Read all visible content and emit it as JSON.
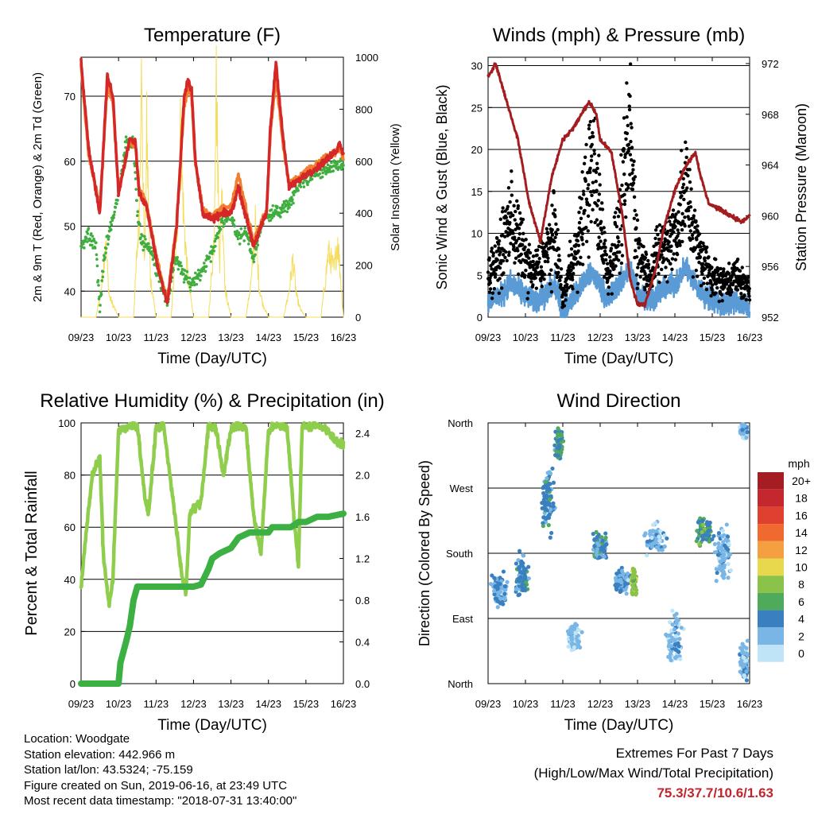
{
  "colors": {
    "temp2m": "#d62728",
    "temp9m": "#f08030",
    "dewpoint": "#3fae3f",
    "insolation": "#f5dc5a",
    "wind": "#000000",
    "gust_sonic": "#5b9bd5",
    "pressure": "#a31c1f",
    "rh": "#8fce4c",
    "precip": "#3cb043",
    "extremes_text": "#c0262d"
  },
  "days": [
    "09/23",
    "10/23",
    "11/23",
    "12/23",
    "13/23",
    "14/23",
    "15/23",
    "16/23"
  ],
  "info": {
    "location": "Location: Woodgate",
    "elevation": "Station elevation: 442.966 m",
    "latlon": "Station lat/lon: 43.5324; -75.159",
    "created": "Figure created on Sun, 2019-06-16, at 23:49 UTC",
    "recent": "Most recent data timestamp: \"2018-07-31 13:40:00\""
  },
  "extremes": {
    "title": "Extremes For Past 7 Days",
    "subtitle": "(High/Low/Max Wind/Total Precipitation)",
    "values": "75.3/37.7/10.6/1.63"
  },
  "chart_data": [
    {
      "type": "line",
      "title": "Temperature (F)",
      "xlabel": "Time (Day/UTC)",
      "ylabel": "2m & 9m T (Red, Orange) & 2m Td (Green)",
      "ylabel_right": "Solar Insolation (Yellow)",
      "xlim": [
        0,
        7
      ],
      "ylim": [
        36,
        76
      ],
      "ylim_right": [
        0,
        1000
      ],
      "yticks": [
        40,
        50,
        60,
        70
      ],
      "yticks_right": [
        0,
        200,
        400,
        600,
        800,
        1000
      ],
      "series": [
        {
          "key": "temp2m",
          "color_key": "temp2m",
          "axis": "left",
          "x": [
            0,
            0.05,
            0.2,
            0.5,
            0.7,
            0.85,
            1.0,
            1.3,
            1.45,
            1.55,
            1.75,
            2.0,
            2.3,
            2.55,
            2.75,
            2.85,
            2.95,
            3.05,
            3.25,
            3.5,
            3.8,
            4.0,
            4.2,
            4.6,
            4.95,
            5.05,
            5.2,
            5.4,
            5.55,
            5.8,
            6.0,
            6.3,
            6.5,
            6.7,
            6.85,
            6.9,
            7.0
          ],
          "y": [
            75.3,
            72,
            62,
            52,
            73,
            70,
            55,
            63.5,
            63,
            55,
            53,
            45,
            38,
            50,
            70,
            72.5,
            71,
            60,
            52,
            51,
            52,
            52,
            56,
            47,
            52,
            65,
            75.3,
            63,
            56,
            57,
            58,
            59,
            60,
            61,
            62,
            63,
            61
          ]
        },
        {
          "key": "temp9m",
          "color_key": "temp9m",
          "axis": "left",
          "x": [
            0,
            0.05,
            0.2,
            0.5,
            0.7,
            0.85,
            1.0,
            1.3,
            1.45,
            1.55,
            1.75,
            2.0,
            2.3,
            2.55,
            2.75,
            2.85,
            2.95,
            3.05,
            3.25,
            3.5,
            3.8,
            4.0,
            4.2,
            4.6,
            4.95,
            5.05,
            5.2,
            5.4,
            5.55,
            5.8,
            6.0,
            6.3,
            6.5,
            6.7,
            6.85,
            6.9,
            7.0
          ],
          "y": [
            74.5,
            71,
            61,
            53,
            71.5,
            69,
            55.5,
            63,
            62.5,
            55.5,
            53.5,
            45.5,
            38.5,
            50.5,
            68.5,
            71,
            70,
            59.5,
            52.5,
            51.5,
            53,
            53,
            58,
            47.5,
            52.5,
            64,
            73,
            62,
            56.5,
            57.5,
            58.5,
            59.5,
            60.5,
            61,
            61.5,
            62,
            60.5
          ]
        },
        {
          "key": "dewpoint",
          "color_key": "dewpoint",
          "axis": "left",
          "x": [
            0,
            0.2,
            0.4,
            0.5,
            0.6,
            0.8,
            1.0,
            1.2,
            1.4,
            1.5,
            1.6,
            1.8,
            2.0,
            2.3,
            2.5,
            2.7,
            2.9,
            3.2,
            3.5,
            3.7,
            4.0,
            4.2,
            4.4,
            4.6,
            4.8,
            5.0,
            5.2,
            5.5,
            5.7,
            5.9,
            6.2,
            6.5,
            6.8,
            7.0
          ],
          "y": [
            47,
            49,
            47,
            37,
            45,
            50,
            55,
            63,
            63,
            52,
            48,
            47,
            44,
            38,
            45,
            43,
            41,
            43,
            46,
            50,
            52,
            48,
            49,
            45,
            50,
            52,
            52,
            53,
            55,
            57,
            58,
            58.5,
            59,
            60
          ]
        },
        {
          "key": "insolation",
          "color_key": "insolation",
          "axis": "right",
          "x": [
            0,
            0.4,
            0.55,
            0.65,
            0.75,
            1.0,
            1.4,
            1.55,
            1.6,
            1.7,
            1.75,
            1.85,
            2.0,
            2.4,
            2.55,
            2.65,
            2.75,
            2.85,
            3.0,
            3.4,
            3.55,
            3.6,
            3.7,
            3.75,
            3.85,
            4.0,
            4.4,
            4.55,
            4.65,
            4.75,
            4.85,
            5.0,
            5.4,
            5.55,
            5.65,
            5.75,
            5.85,
            6.0,
            6.4,
            6.5,
            6.6,
            6.75,
            6.85,
            7.0
          ],
          "y": [
            0,
            0,
            120,
            300,
            80,
            0,
            0,
            400,
            950,
            200,
            700,
            150,
            0,
            0,
            300,
            700,
            350,
            150,
            0,
            0,
            300,
            960,
            200,
            500,
            100,
            0,
            0,
            150,
            350,
            120,
            50,
            0,
            0,
            100,
            220,
            80,
            30,
            0,
            0,
            120,
            250,
            180,
            300,
            0
          ]
        }
      ]
    },
    {
      "type": "scatter",
      "title": "Winds (mph) & Pressure (mb)",
      "xlabel": "Time (Day/UTC)",
      "ylabel": "Sonic Wind & Gust (Blue, Black)",
      "ylabel_right": "Station Pressure (Maroon)",
      "xlim": [
        0,
        7
      ],
      "ylim": [
        0,
        31
      ],
      "ylim_right": [
        952,
        972.5
      ],
      "yticks": [
        0,
        5,
        10,
        15,
        20,
        25,
        30
      ],
      "yticks_right": [
        952,
        956,
        960,
        964,
        968,
        972
      ],
      "series": [
        {
          "key": "gust",
          "color_key": "wind",
          "axis": "left",
          "x": [
            0,
            0.3,
            0.6,
            0.9,
            1.2,
            1.5,
            1.8,
            2.0,
            2.2,
            2.4,
            2.6,
            2.8,
            3.0,
            3.2,
            3.5,
            3.8,
            4.0,
            4.3,
            4.6,
            5.0,
            5.3,
            5.6,
            6.0,
            6.3,
            6.6,
            7.0
          ],
          "y": [
            5,
            7,
            12,
            8,
            5,
            7,
            10,
            2,
            6,
            8,
            14,
            18,
            12,
            5,
            10,
            22,
            8,
            5,
            8,
            10,
            15,
            8,
            5,
            4,
            5,
            3
          ]
        },
        {
          "key": "sonic",
          "color_key": "gust_sonic",
          "axis": "left",
          "x": [
            0,
            0.3,
            0.6,
            0.9,
            1.2,
            1.5,
            1.8,
            2.0,
            2.2,
            2.4,
            2.6,
            2.8,
            3.0,
            3.2,
            3.5,
            3.8,
            4.0,
            4.3,
            4.6,
            5.0,
            5.3,
            5.6,
            6.0,
            6.3,
            6.6,
            7.0
          ],
          "y": [
            2,
            2.5,
            4,
            3,
            2,
            2.5,
            4,
            0.5,
            2,
            3,
            4.5,
            5,
            4,
            2,
            4,
            6,
            3,
            2,
            3,
            4,
            6,
            3.5,
            2,
            1.5,
            2,
            1
          ]
        },
        {
          "key": "pressure",
          "color_key": "pressure",
          "axis": "right",
          "x": [
            0,
            0.2,
            0.5,
            0.8,
            1.1,
            1.4,
            1.7,
            2.0,
            2.3,
            2.5,
            2.7,
            2.9,
            3.0,
            3.3,
            3.6,
            3.8,
            4.0,
            4.2,
            4.5,
            4.7,
            5.0,
            5.3,
            5.55,
            5.7,
            5.9,
            6.2,
            6.5,
            6.8,
            7.0
          ],
          "y": [
            971,
            972,
            969,
            966,
            961,
            958,
            963,
            966,
            967,
            968,
            969,
            968,
            966,
            965,
            960,
            955,
            953,
            953,
            956,
            959,
            962,
            964,
            965,
            963,
            961,
            960.5,
            960,
            959.5,
            960
          ]
        }
      ]
    },
    {
      "type": "line",
      "title": "Relative Humidity (%) & Precipitation (in)",
      "xlabel": "Time (Day/UTC)",
      "ylabel": "Percent & Total Rainfall",
      "xlim": [
        0,
        7
      ],
      "ylim": [
        0,
        100
      ],
      "ylim_right": [
        0,
        2.5
      ],
      "yticks": [
        0,
        20,
        40,
        60,
        80,
        100
      ],
      "yticks_right": [
        0,
        0.4,
        0.8,
        1.2,
        1.6,
        2.0,
        2.4
      ],
      "series": [
        {
          "key": "rh",
          "color_key": "rh",
          "axis": "left",
          "x": [
            0,
            0.15,
            0.3,
            0.5,
            0.6,
            0.75,
            0.85,
            1.0,
            1.2,
            1.5,
            1.7,
            1.8,
            2.0,
            2.2,
            2.5,
            2.7,
            2.8,
            2.9,
            3.2,
            3.4,
            3.6,
            3.8,
            4.0,
            4.2,
            4.4,
            4.6,
            4.8,
            5.0,
            5.2,
            5.5,
            5.7,
            5.8,
            5.9,
            6.2,
            6.5,
            6.8,
            7.0
          ],
          "y": [
            37,
            60,
            80,
            86,
            48,
            30,
            40,
            97,
            98,
            99,
            72,
            65,
            98,
            99,
            65,
            40,
            35,
            65,
            70,
            99,
            98,
            80,
            98,
            99,
            98,
            65,
            50,
            97,
            99,
            98,
            60,
            46,
            99,
            99,
            98,
            93,
            92
          ]
        },
        {
          "key": "precip",
          "color_key": "precip",
          "axis": "right",
          "x": [
            0,
            1.0,
            1.05,
            1.2,
            1.3,
            1.4,
            1.5,
            1.7,
            2.0,
            2.5,
            3.0,
            3.2,
            3.4,
            3.5,
            3.7,
            4.0,
            4.2,
            4.5,
            4.8,
            5.0,
            5.1,
            5.3,
            5.6,
            5.8,
            6.0,
            6.3,
            6.6,
            7.0
          ],
          "y": [
            0,
            0,
            0.2,
            0.4,
            0.55,
            0.8,
            0.93,
            0.93,
            0.93,
            0.93,
            0.93,
            0.95,
            1.1,
            1.2,
            1.25,
            1.3,
            1.4,
            1.45,
            1.45,
            1.45,
            1.5,
            1.5,
            1.5,
            1.55,
            1.55,
            1.6,
            1.6,
            1.63
          ]
        }
      ]
    },
    {
      "type": "scatter",
      "title": "Wind Direction",
      "xlabel": "Time (Day/UTC)",
      "ylabel": "Direction (Colored By Speed)",
      "xlim": [
        0,
        7
      ],
      "y_categories": [
        "North",
        "East",
        "South",
        "West",
        "North"
      ],
      "legend_unit": "mph",
      "legend_labels": [
        "20+",
        "18",
        "16",
        "14",
        "12",
        "10",
        "8",
        "6",
        "4",
        "2",
        "0"
      ],
      "legend_colors": [
        "#a51d22",
        "#c4282e",
        "#e04030",
        "#f0692f",
        "#f5a040",
        "#e8d84e",
        "#8ac24a",
        "#4faa5c",
        "#3a80c0",
        "#79b6e6",
        "#bfe4f7"
      ],
      "clusters": [
        {
          "x": 0.3,
          "dir": 130,
          "spread_x": 0.3,
          "spread_y": 25,
          "speed": 3
        },
        {
          "x": 0.9,
          "dir": 150,
          "spread_x": 0.25,
          "spread_y": 30,
          "speed": 4
        },
        {
          "x": 1.6,
          "dir": 250,
          "spread_x": 0.25,
          "spread_y": 50,
          "speed": 4
        },
        {
          "x": 1.9,
          "dir": 330,
          "spread_x": 0.15,
          "spread_y": 25,
          "speed": 5
        },
        {
          "x": 2.3,
          "dir": 65,
          "spread_x": 0.25,
          "spread_y": 20,
          "speed": 1
        },
        {
          "x": 3.0,
          "dir": 190,
          "spread_x": 0.3,
          "spread_y": 20,
          "speed": 4
        },
        {
          "x": 3.6,
          "dir": 140,
          "spread_x": 0.3,
          "spread_y": 20,
          "speed": 3
        },
        {
          "x": 3.9,
          "dir": 140,
          "spread_x": 0.1,
          "spread_y": 20,
          "speed": 8
        },
        {
          "x": 4.5,
          "dir": 200,
          "spread_x": 0.4,
          "spread_y": 25,
          "speed": 2
        },
        {
          "x": 5.0,
          "dir": 60,
          "spread_x": 0.3,
          "spread_y": 40,
          "speed": 2
        },
        {
          "x": 5.8,
          "dir": 210,
          "spread_x": 0.3,
          "spread_y": 20,
          "speed": 5
        },
        {
          "x": 6.3,
          "dir": 180,
          "spread_x": 0.3,
          "spread_y": 40,
          "speed": 2
        },
        {
          "x": 6.85,
          "dir": 30,
          "spread_x": 0.15,
          "spread_y": 30,
          "speed": 2
        },
        {
          "x": 6.85,
          "dir": 350,
          "spread_x": 0.15,
          "spread_y": 15,
          "speed": 2
        }
      ]
    }
  ]
}
